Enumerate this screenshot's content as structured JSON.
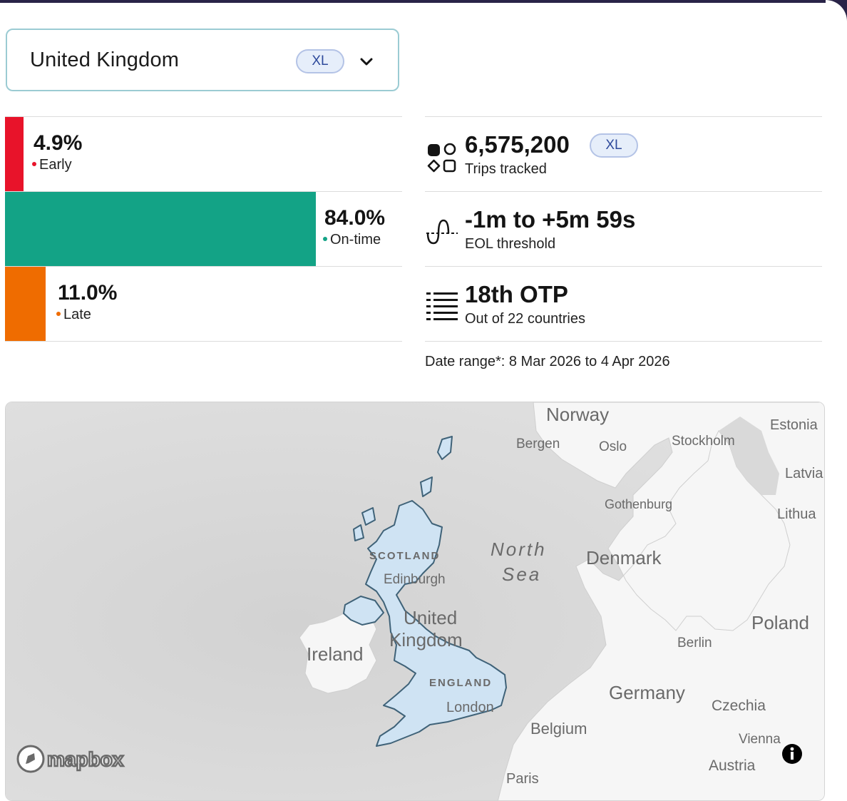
{
  "selector": {
    "country": "United Kingdom",
    "badge": "XL"
  },
  "distribution": [
    {
      "value": "4.9%",
      "label": "Early",
      "fraction": 0.049,
      "color": "#e8132a"
    },
    {
      "value": "84.0%",
      "label": "On-time",
      "fraction": 0.84,
      "color": "#13a386"
    },
    {
      "value": "11.0%",
      "label": "Late",
      "fraction": 0.11,
      "color": "#ef6c00"
    }
  ],
  "stats": {
    "trips": {
      "value": "6,575,200",
      "label": "Trips tracked",
      "badge": "XL"
    },
    "threshold": {
      "value": "-1m to +5m 59s",
      "label": "EOL threshold"
    },
    "rank": {
      "value": "18th OTP",
      "label": "Out of 22 countries"
    }
  },
  "date_range": "Date range*: 8 Mar 2026 to 4 Apr 2026",
  "map": {
    "labels": {
      "norway": "Norway",
      "bergen": "Bergen",
      "oslo": "Oslo",
      "stockholm": "Stockholm",
      "estonia": "Estonia",
      "latvia": "Latvia",
      "lithuania": "Lithua",
      "gothenburg": "Gothenburg",
      "north": "North",
      "sea": "Sea",
      "denmark": "Denmark",
      "scotland": "SCOTLAND",
      "edinburgh": "Edinburgh",
      "united": "United",
      "kingdom": "Kingdom",
      "ireland": "Ireland",
      "england": "ENGLAND",
      "london": "London",
      "poland": "Poland",
      "berlin": "Berlin",
      "germany": "Germany",
      "czechia": "Czechia",
      "belgium": "Belgium",
      "vienna": "Vienna",
      "austria": "Austria",
      "paris": "Paris"
    },
    "attribution": "mapbox",
    "info_icon": "info-icon"
  }
}
